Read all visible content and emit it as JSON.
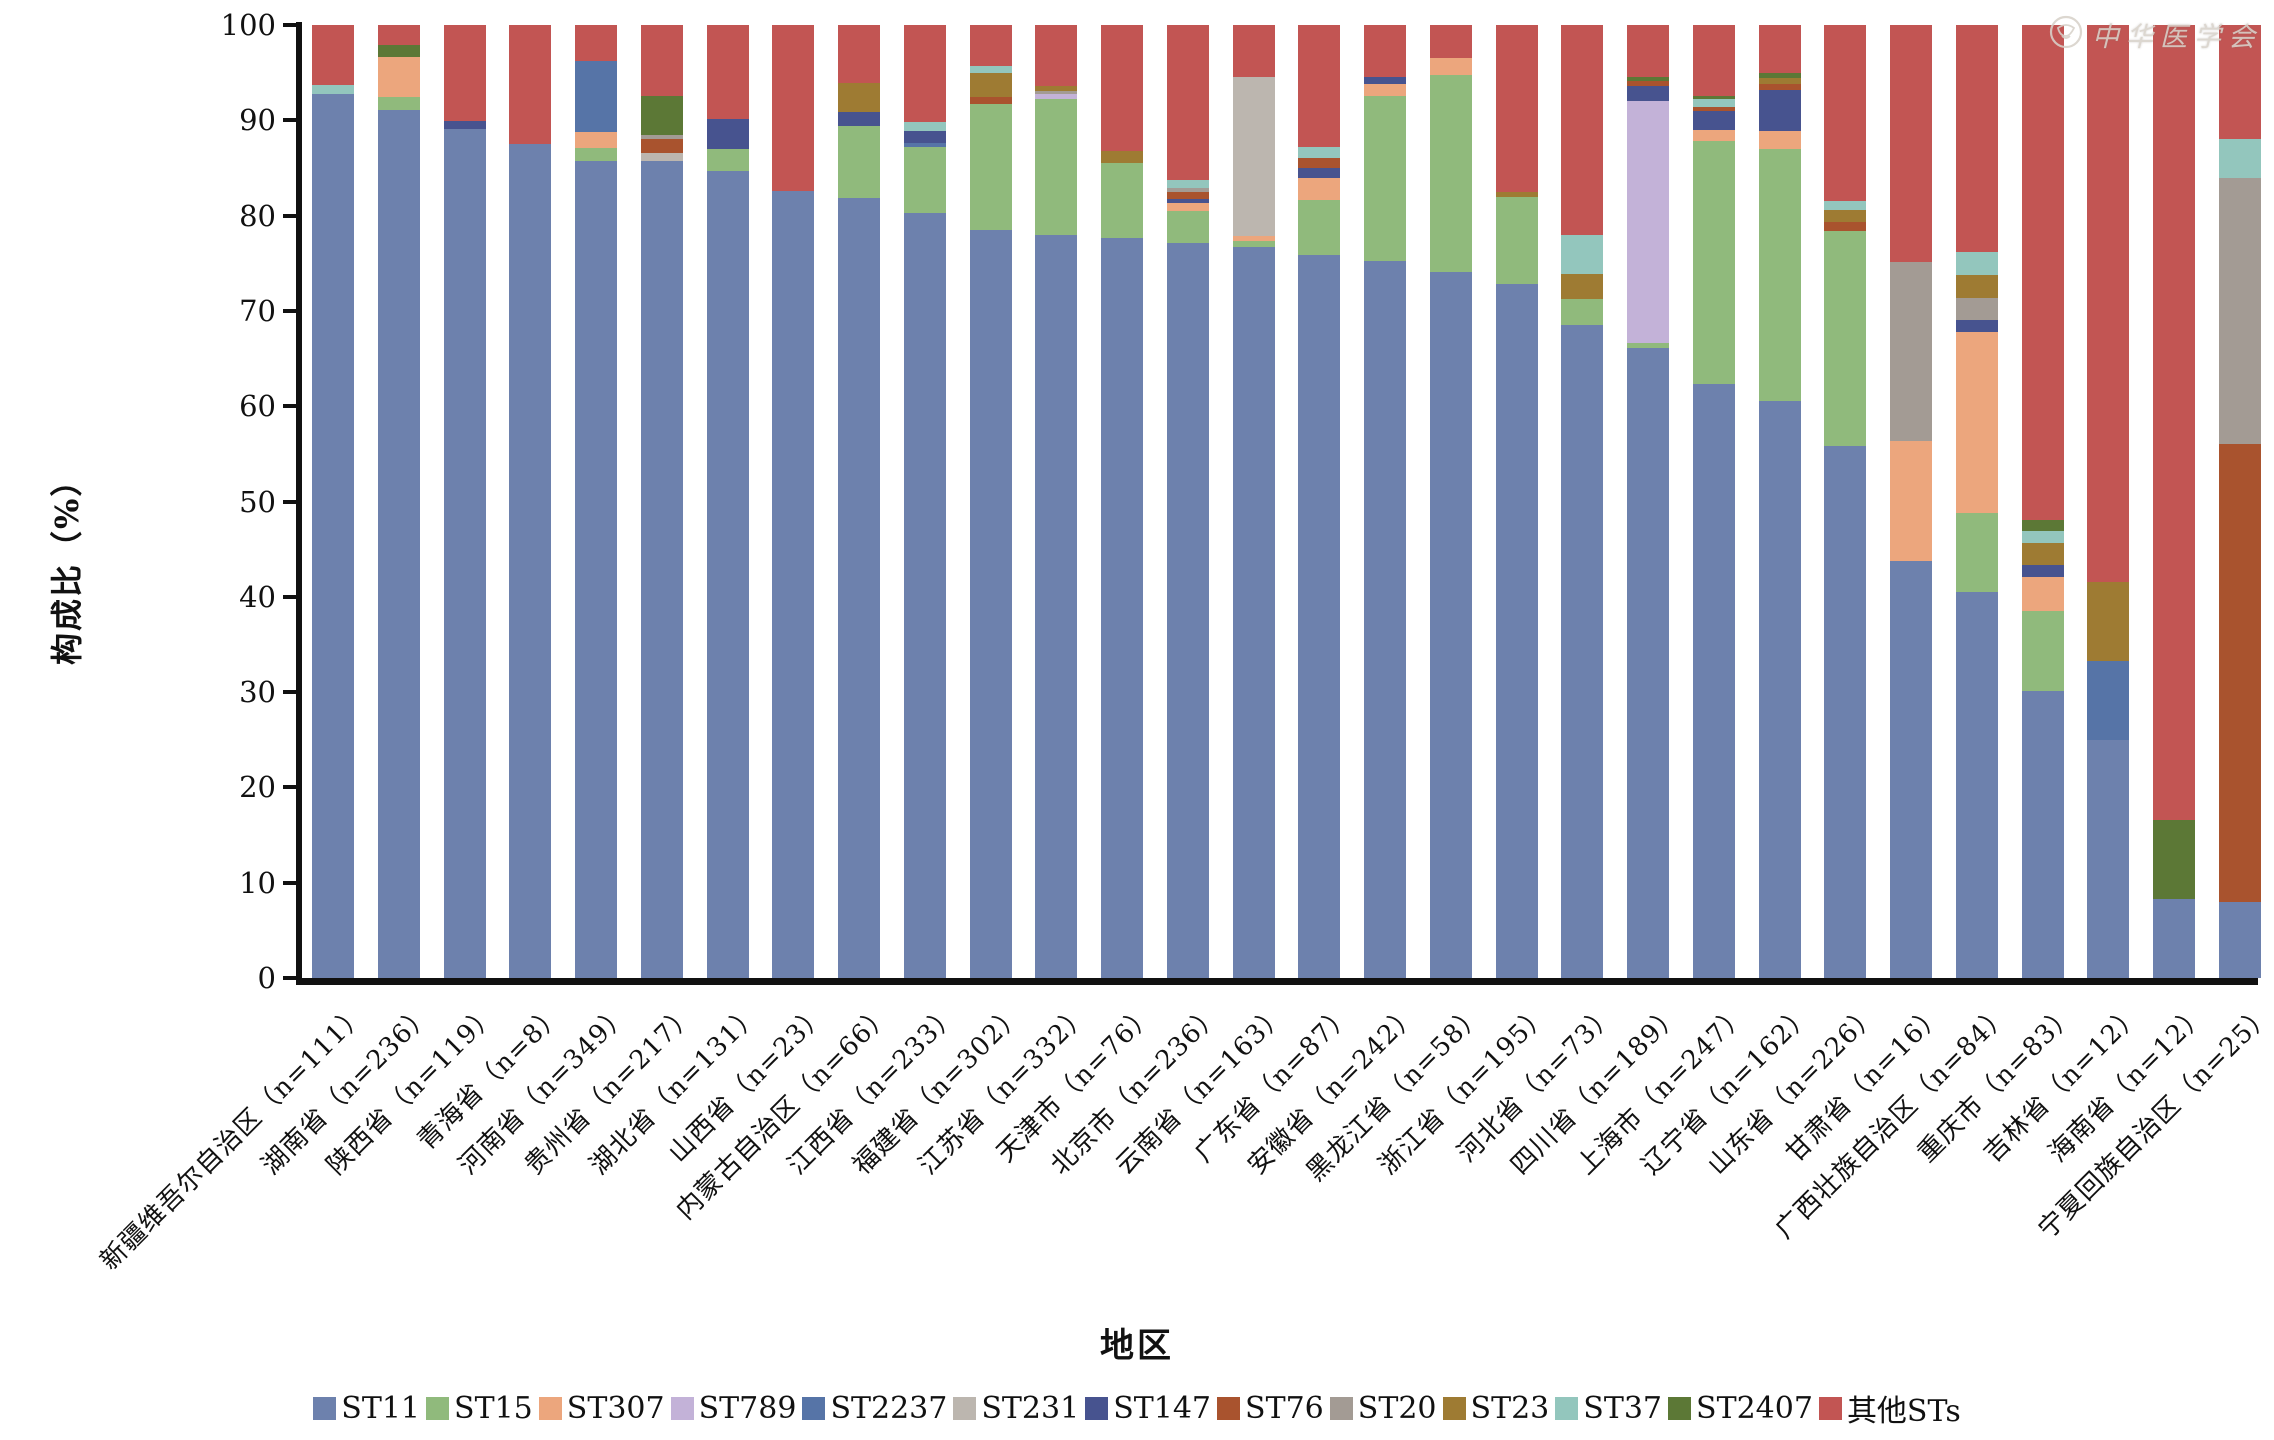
{
  "watermark": {
    "text": "中华医学会",
    "icon": "cma-emblem"
  },
  "axes": {
    "y_title": "构成比（%）",
    "x_title": "地区",
    "y_ticks": [
      0,
      10,
      20,
      30,
      40,
      50,
      60,
      70,
      80,
      90,
      100
    ]
  },
  "chart_data": {
    "type": "bar",
    "variant": "stacked-percent-vertical",
    "title": "",
    "xlabel": "地区",
    "ylabel": "构成比（%）",
    "ylim": [
      0,
      100
    ],
    "grid": false,
    "legend_position": "bottom",
    "categories": [
      "新疆维吾尔自治区（n=111）",
      "湖南省（n=236）",
      "陕西省（n=119）",
      "青海省（n=8）",
      "河南省（n=349）",
      "贵州省（n=217）",
      "湖北省（n=131）",
      "山西省（n=23）",
      "内蒙古自治区（n=66）",
      "江西省（n=233）",
      "福建省（n=302）",
      "江苏省（n=332）",
      "天津市（n=76）",
      "北京市（n=236）",
      "云南省（n=163）",
      "广东省（n=87）",
      "安徽省（n=242）",
      "黑龙江省（n=58）",
      "浙江省（n=195）",
      "河北省（n=73）",
      "四川省（n=189）",
      "上海市（n=247）",
      "辽宁省（n=162）",
      "山东省（n=226）",
      "甘肃省（n=16）",
      "广西壮族自治区（n=84）",
      "重庆市（n=83）",
      "吉林省（n=12）",
      "海南省（n=12）",
      "宁夏回族自治区（n=25）"
    ],
    "sample_sizes": [
      111,
      236,
      119,
      8,
      349,
      217,
      131,
      23,
      66,
      233,
      302,
      332,
      76,
      236,
      163,
      87,
      242,
      58,
      195,
      73,
      189,
      247,
      162,
      226,
      16,
      84,
      83,
      12,
      12,
      25
    ],
    "series": [
      {
        "name": "ST11",
        "color": "#6d81ad",
        "values": [
          92.8,
          91.1,
          89.1,
          87.5,
          85.7,
          85.7,
          84.7,
          82.6,
          81.8,
          80.3,
          78.5,
          78.0,
          77.6,
          77.1,
          76.7,
          75.9,
          75.2,
          74.1,
          72.8,
          68.5,
          66.1,
          62.3,
          60.5,
          55.8,
          43.8,
          40.5,
          30.1,
          25.0,
          8.3,
          8.0
        ]
      },
      {
        "name": "ST15",
        "color": "#90ba7c",
        "values": [
          0,
          1.3,
          0,
          0,
          1.4,
          0,
          2.3,
          0,
          7.6,
          6.9,
          13.2,
          14.2,
          7.9,
          3.4,
          0.6,
          5.7,
          17.4,
          20.7,
          9.2,
          2.7,
          0.5,
          25.5,
          26.5,
          22.6,
          0,
          8.3,
          8.4,
          0,
          0,
          0
        ]
      },
      {
        "name": "ST307",
        "color": "#eca67d",
        "values": [
          0,
          4.2,
          0,
          0,
          1.7,
          0,
          0,
          0,
          0,
          0,
          0,
          0,
          0,
          0.8,
          0.6,
          2.3,
          1.2,
          1.7,
          0,
          0,
          0,
          1.2,
          1.9,
          0,
          12.5,
          19.0,
          3.6,
          0,
          0,
          0
        ]
      },
      {
        "name": "ST789",
        "color": "#c3b2d8",
        "values": [
          0,
          0,
          0,
          0,
          0,
          0,
          0,
          0,
          0,
          0,
          0,
          0.6,
          0,
          0,
          0,
          0,
          0,
          0,
          0,
          0,
          25.4,
          0,
          0,
          0,
          0,
          0,
          0,
          0,
          0,
          0
        ]
      },
      {
        "name": "ST2237",
        "color": "#5674a7",
        "values": [
          0,
          0,
          0,
          0,
          7.4,
          0,
          0,
          0,
          0,
          0.4,
          0,
          0,
          0,
          0,
          0,
          0,
          0,
          0,
          0,
          0,
          0,
          0,
          0,
          0,
          0,
          0,
          0,
          8.3,
          0,
          0
        ]
      },
      {
        "name": "ST231",
        "color": "#bcb6af",
        "values": [
          0,
          0,
          0,
          0,
          0,
          0.9,
          0,
          0,
          0,
          0,
          0,
          0,
          0,
          0,
          16.6,
          0,
          0,
          0,
          0,
          0,
          0,
          0,
          0,
          0,
          0,
          0,
          0,
          0,
          0,
          0
        ]
      },
      {
        "name": "ST147",
        "color": "#47538f",
        "values": [
          0,
          0,
          0.8,
          0,
          0,
          0,
          3.1,
          0,
          1.5,
          1.3,
          0,
          0,
          0,
          0.4,
          0,
          1.1,
          0.8,
          0,
          0,
          0,
          1.6,
          2.0,
          4.3,
          0,
          0,
          1.2,
          1.2,
          0,
          0,
          0
        ]
      },
      {
        "name": "ST76",
        "color": "#a9532e",
        "values": [
          0,
          0,
          0,
          0,
          0,
          1.4,
          0,
          0,
          0,
          0,
          0.7,
          0,
          0,
          0.8,
          0,
          1.1,
          0,
          0,
          0,
          0,
          0.5,
          0.4,
          0.6,
          0.9,
          0,
          0,
          0,
          0,
          0,
          48.0
        ]
      },
      {
        "name": "ST20",
        "color": "#a39b94",
        "values": [
          0,
          0,
          0,
          0,
          0,
          0.5,
          0,
          0,
          0,
          0,
          0,
          0.3,
          0,
          0.4,
          0,
          0,
          0,
          0,
          0,
          0,
          0,
          0,
          0,
          0,
          18.8,
          2.4,
          0,
          0,
          0,
          28.0
        ]
      },
      {
        "name": "ST23",
        "color": "#9e7b33",
        "values": [
          0,
          0,
          0,
          0,
          0,
          0,
          0,
          0,
          3.0,
          0,
          2.6,
          0.5,
          1.3,
          0,
          0,
          0,
          0,
          0,
          0.5,
          2.7,
          0,
          0,
          0.6,
          1.3,
          0,
          2.4,
          2.4,
          8.3,
          0,
          0
        ]
      },
      {
        "name": "ST37",
        "color": "#93c6bd",
        "values": [
          0.9,
          0,
          0,
          0,
          0,
          0,
          0,
          0,
          0,
          0.9,
          0.7,
          0,
          0,
          0.8,
          0,
          1.1,
          0,
          0,
          0,
          4.1,
          0,
          0.8,
          0,
          0.9,
          0,
          2.4,
          1.2,
          0,
          0,
          4.0
        ]
      },
      {
        "name": "ST2407",
        "color": "#5c7836",
        "values": [
          0,
          1.3,
          0,
          0,
          0,
          4.1,
          0,
          0,
          0,
          0,
          0,
          0,
          0,
          0,
          0,
          0,
          0,
          0,
          0,
          0,
          0.5,
          0.4,
          0.6,
          0,
          0,
          0,
          1.2,
          0,
          8.3,
          0
        ]
      },
      {
        "name": "其他STs",
        "color": "#c25553",
        "values": [
          6.3,
          2.1,
          10.1,
          12.5,
          3.8,
          7.4,
          9.9,
          17.4,
          6.1,
          10.2,
          4.3,
          6.4,
          13.2,
          16.3,
          5.5,
          12.8,
          5.4,
          3.5,
          17.5,
          22.0,
          5.4,
          7.4,
          5.0,
          18.5,
          24.9,
          23.8,
          51.9,
          58.4,
          83.4,
          12.0
        ]
      }
    ]
  }
}
